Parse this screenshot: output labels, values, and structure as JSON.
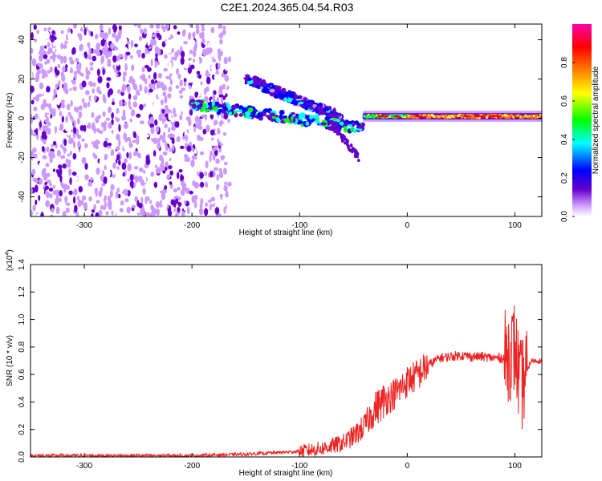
{
  "title": "C2E1.2024.365.04.54.R03",
  "chart_data": [
    {
      "type": "heatmap",
      "xlabel": "Height of straight line (km)",
      "ylabel": "Frequency (Hz)",
      "xlim": [
        -350,
        125
      ],
      "ylim": [
        -50,
        48
      ],
      "xticks": [
        -300,
        -200,
        -100,
        0,
        100
      ],
      "yticks": [
        -40,
        -20,
        0,
        20,
        40
      ],
      "colorbar": {
        "label": "Normalized spectral amplitude",
        "range": [
          0,
          1
        ],
        "ticks": [
          "0.0",
          "0.2",
          "0.4",
          "0.6",
          "0.8"
        ],
        "colors": [
          "#ffffff",
          "#cc99ff",
          "#6600cc",
          "#0000ff",
          "#00ffff",
          "#00ff00",
          "#ffff00",
          "#ff7f00",
          "#ff0000",
          "#ff00aa"
        ]
      },
      "features": [
        {
          "name": "broadband noise",
          "x": [
            -350,
            -185
          ],
          "y": [
            -50,
            48
          ],
          "amplitude": 0.15
        },
        {
          "name": "upper branch",
          "x": [
            -150,
            -60
          ],
          "y": [
            20,
            0
          ],
          "amplitude": 0.35
        },
        {
          "name": "main trace",
          "x": [
            -200,
            -40
          ],
          "y": [
            7,
            -5
          ],
          "amplitude": 0.45
        },
        {
          "name": "steady signal",
          "x": [
            -40,
            125
          ],
          "y": [
            1,
            1
          ],
          "amplitude": 0.9
        }
      ]
    },
    {
      "type": "line",
      "xlabel": "Height of straight line (km)",
      "ylabel": "SNR (10 * v/v)",
      "exponent_label": "(x10",
      "exponent_power": "4",
      "exponent_close": ")",
      "xlim": [
        -350,
        125
      ],
      "ylim": [
        0,
        1.4
      ],
      "xticks": [
        -300,
        -200,
        -100,
        0,
        100
      ],
      "yticks": [
        "0.0",
        "0.2",
        "0.4",
        "0.6",
        "0.8",
        "1.0",
        "1.2",
        "1.4"
      ],
      "color": "#ee2222",
      "series": [
        {
          "x": [
            -350,
            -300,
            -250,
            -200,
            -150,
            -100,
            -80,
            -60,
            -50,
            -40,
            -30,
            -20,
            -10,
            0,
            10,
            20,
            30,
            40,
            50,
            60,
            70,
            80,
            90,
            95,
            100,
            105,
            110,
            115,
            125
          ],
          "y": [
            0.01,
            0.01,
            0.01,
            0.01,
            0.02,
            0.04,
            0.06,
            0.1,
            0.15,
            0.22,
            0.35,
            0.42,
            0.47,
            0.55,
            0.6,
            0.67,
            0.72,
            0.73,
            0.74,
            0.73,
            0.73,
            0.72,
            0.72,
            0.75,
            0.8,
            0.5,
            0.6,
            0.7,
            0.7
          ]
        }
      ]
    }
  ]
}
